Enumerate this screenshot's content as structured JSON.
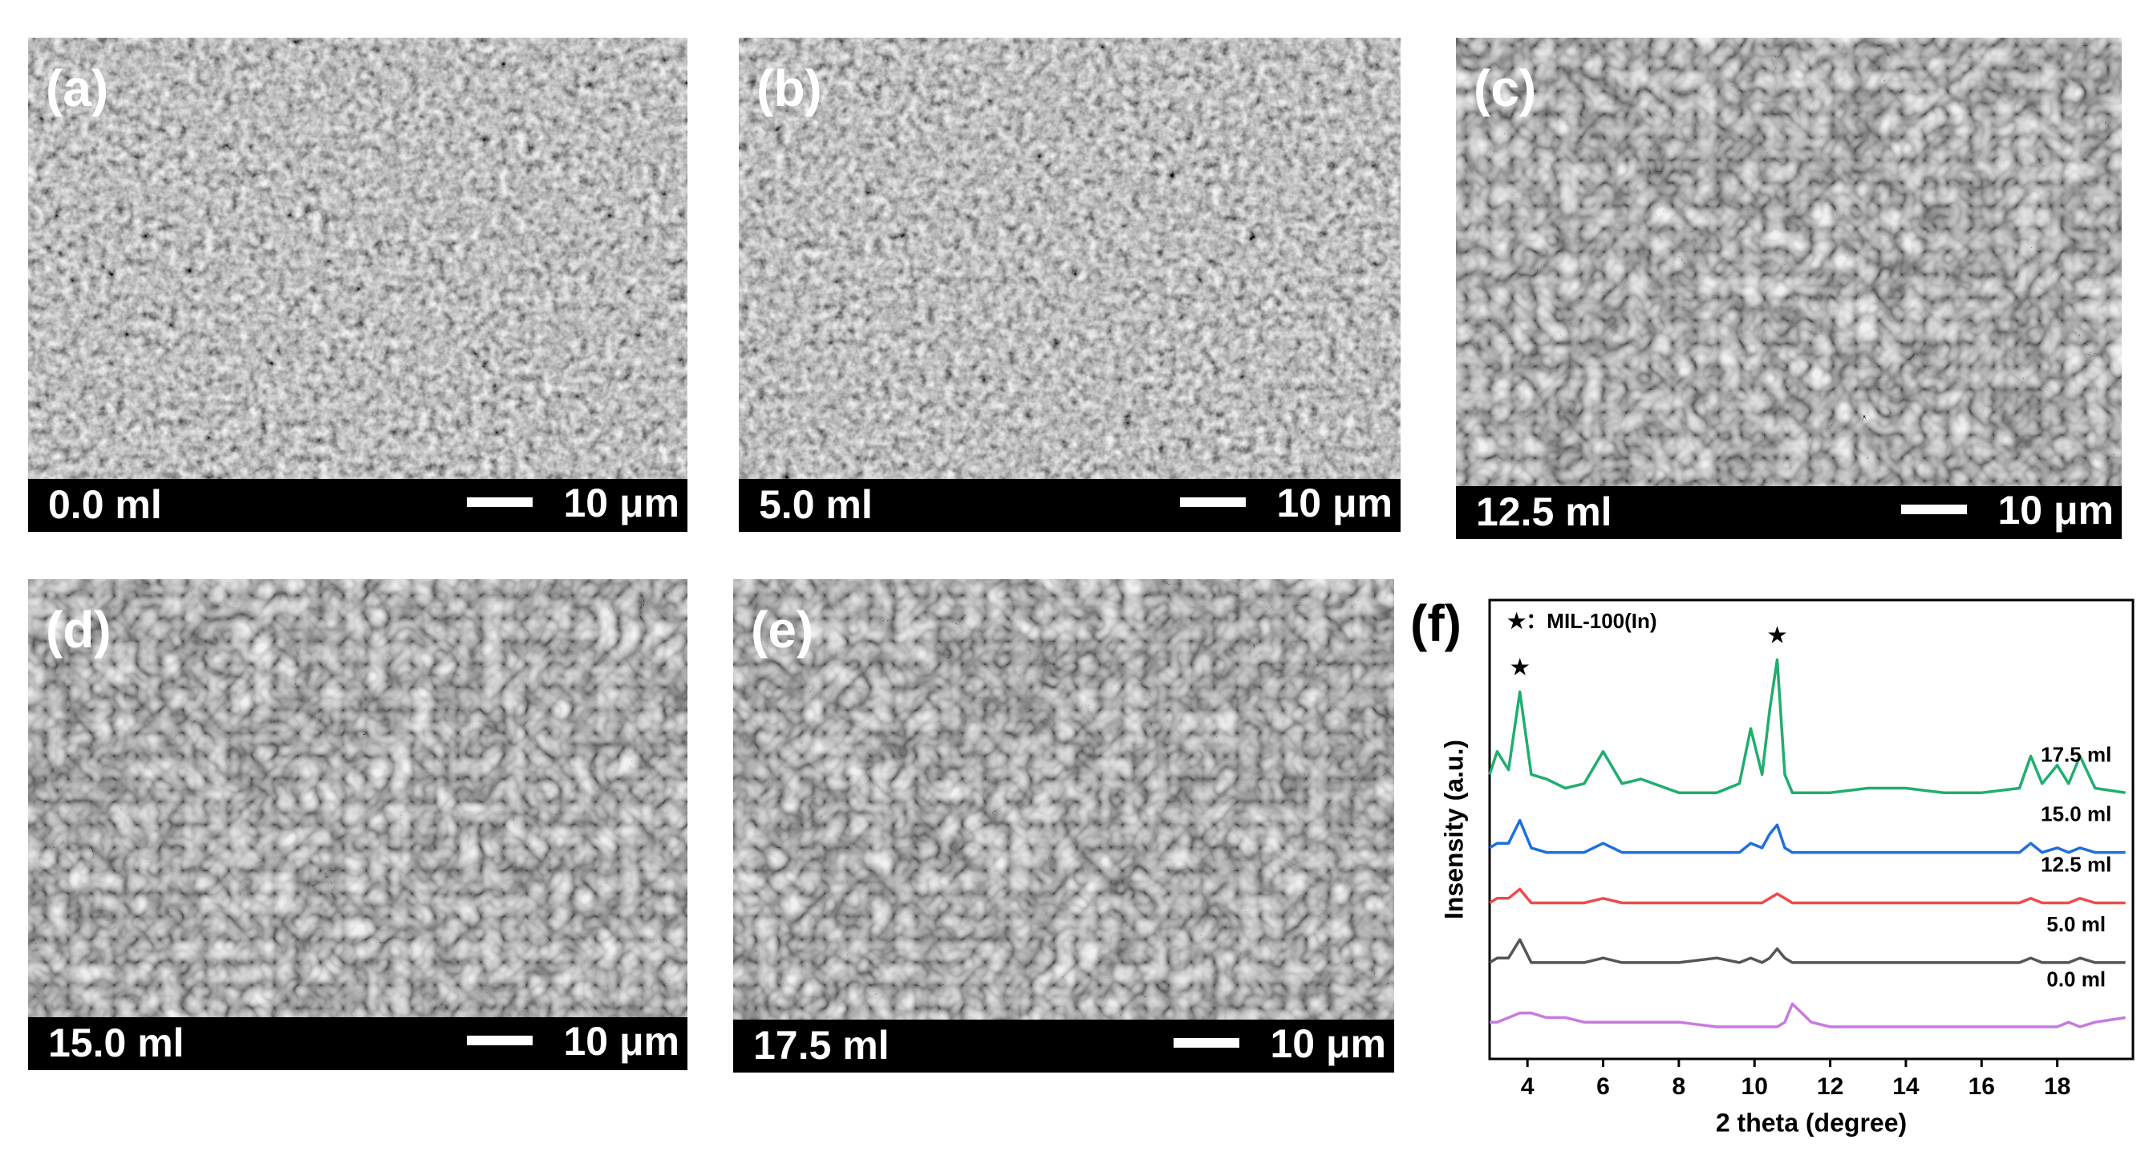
{
  "panels": [
    {
      "label": "(a)",
      "volume": "0.0 ml",
      "scale": "10 μm"
    },
    {
      "label": "(b)",
      "volume": "5.0 ml",
      "scale": "10 μm"
    },
    {
      "label": "(c)",
      "volume": "12.5 ml",
      "scale": "10 μm"
    },
    {
      "label": "(d)",
      "volume": "15.0 ml",
      "scale": "10 μm"
    },
    {
      "label": "(e)",
      "volume": "17.5 ml",
      "scale": "10 μm"
    }
  ],
  "chart_data": {
    "type": "line",
    "panel_label": "(f)",
    "legend_note": "★：MIL-100(In)",
    "xlabel": "2 theta (degree)",
    "ylabel": "Insensity (a.u.)",
    "xlim": [
      3,
      20
    ],
    "xticks": [
      4,
      6,
      8,
      10,
      12,
      14,
      16,
      18
    ],
    "ylim": [
      0,
      100
    ],
    "x": [
      3,
      3.2,
      3.5,
      3.8,
      4.1,
      4.5,
      5,
      5.5,
      6,
      6.5,
      7,
      8,
      9,
      9.6,
      9.9,
      10.2,
      10.4,
      10.6,
      10.8,
      11,
      11.5,
      12,
      13,
      14,
      15,
      16,
      17,
      17.3,
      17.6,
      18,
      18.3,
      18.6,
      19,
      19.8
    ],
    "series": [
      {
        "name": "17.5 ml",
        "color": "#1fae6e",
        "values": [
          62,
          67,
          63,
          80,
          62,
          61,
          59,
          60,
          67,
          60,
          61,
          58,
          58,
          60,
          72,
          62,
          76,
          87,
          62,
          58,
          58,
          58,
          59,
          59,
          58,
          58,
          59,
          66,
          60,
          64,
          60,
          66,
          59,
          58
        ]
      },
      {
        "name": "15.0 ml",
        "color": "#1e6fdc",
        "values": [
          46,
          47,
          47,
          52,
          46,
          45,
          45,
          45,
          47,
          45,
          45,
          45,
          45,
          45,
          47,
          46,
          49,
          51,
          46,
          45,
          45,
          45,
          45,
          45,
          45,
          45,
          45,
          47,
          45,
          46,
          45,
          46,
          45,
          45
        ]
      },
      {
        "name": "12.5 ml",
        "color": "#ee4b4b",
        "values": [
          34,
          35,
          35,
          37,
          34,
          34,
          34,
          34,
          35,
          34,
          34,
          34,
          34,
          34,
          34,
          34,
          35,
          36,
          35,
          34,
          34,
          34,
          34,
          34,
          34,
          34,
          34,
          35,
          34,
          34,
          34,
          35,
          34,
          34
        ]
      },
      {
        "name": "5.0 ml",
        "color": "#555555",
        "values": [
          21,
          22,
          22,
          26,
          21,
          21,
          21,
          21,
          22,
          21,
          21,
          21,
          22,
          21,
          22,
          21,
          22,
          24,
          22,
          21,
          21,
          21,
          21,
          21,
          21,
          21,
          21,
          22,
          21,
          21,
          21,
          22,
          21,
          21
        ]
      },
      {
        "name": "0.0 ml",
        "color": "#c77ae0",
        "values": [
          8,
          8,
          9,
          10,
          10,
          9,
          9,
          8,
          8,
          8,
          8,
          8,
          7,
          7,
          7,
          7,
          7,
          7,
          8,
          12,
          8,
          7,
          7,
          7,
          7,
          7,
          7,
          7,
          7,
          7,
          8,
          7,
          8,
          9
        ]
      }
    ],
    "annotations": [
      {
        "text": "★",
        "x": 3.8,
        "y": 85
      },
      {
        "text": "★",
        "x": 10.6,
        "y": 92
      }
    ]
  }
}
